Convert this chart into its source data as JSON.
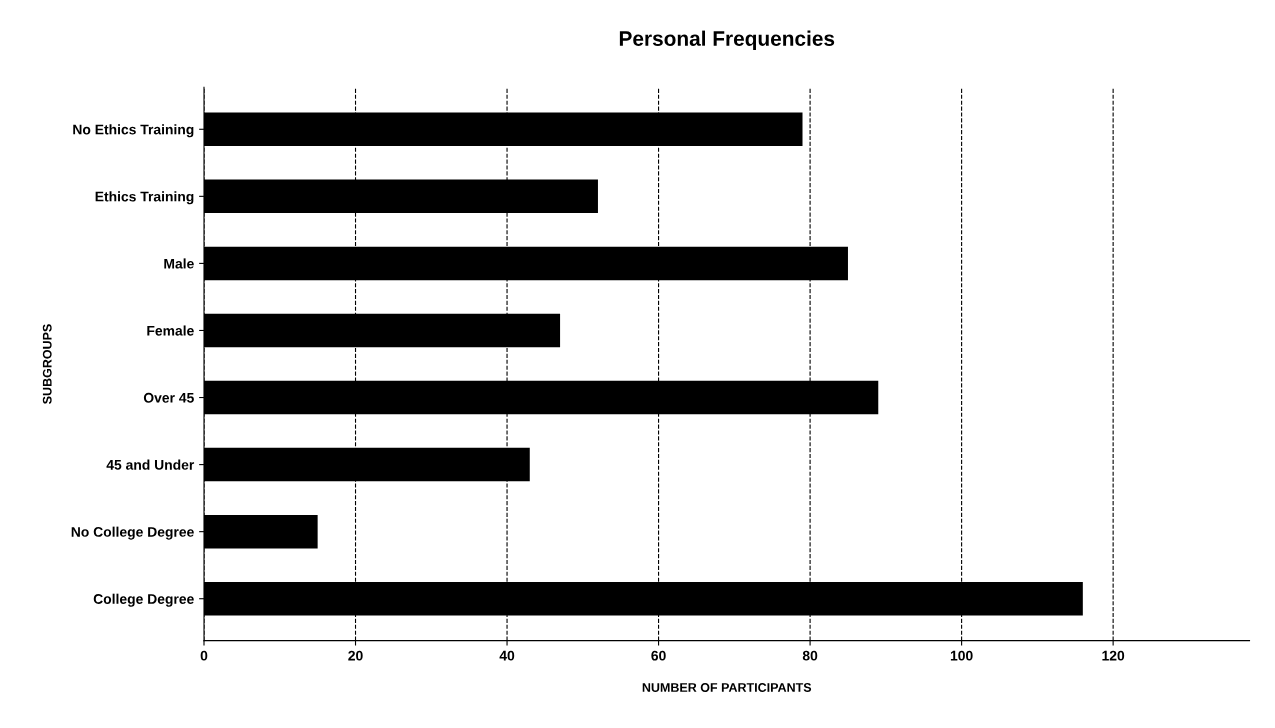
{
  "chart_data": {
    "type": "bar",
    "orientation": "horizontal",
    "title": "Personal Frequencies",
    "xlabel": "NUMBER OF PARTICIPANTS",
    "ylabel": "SUBGROUPS",
    "categories": [
      "No Ethics Training",
      "Ethics Training",
      "Male",
      "Female",
      "Over 45",
      "45 and Under",
      "No College Degree",
      "College Degree"
    ],
    "values": [
      79,
      52,
      85,
      47,
      89,
      43,
      15,
      116
    ],
    "color": "#000000",
    "xlim": [
      0,
      138
    ],
    "xticks": [
      0,
      20,
      40,
      60,
      80,
      100,
      120
    ],
    "grid": "x",
    "legend": false
  }
}
